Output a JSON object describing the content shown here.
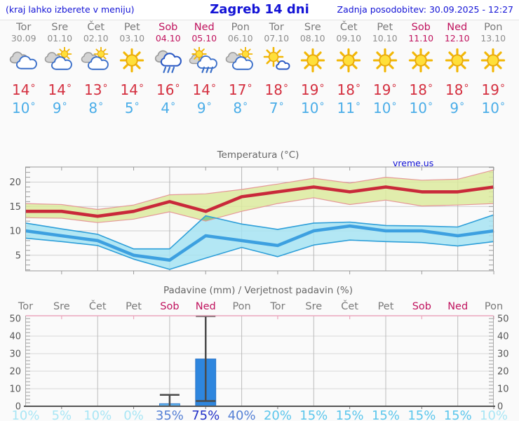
{
  "header": {
    "hint": "(kraj lahko izberete v meniju)",
    "title": "Zagreb 14 dni",
    "updated": "Zadnja posodobitev: 30.09.2025 - 12:27"
  },
  "watermark": "vreme.us",
  "forecast": {
    "days": [
      {
        "day": "Tor",
        "date": "30.09",
        "weekend": false,
        "icon": "cloudy",
        "tmax": 14,
        "tmin": 10
      },
      {
        "day": "Sre",
        "date": "01.10",
        "weekend": false,
        "icon": "sun-cloud",
        "tmax": 14,
        "tmin": 9
      },
      {
        "day": "Čet",
        "date": "02.10",
        "weekend": false,
        "icon": "sun-cloud",
        "tmax": 13,
        "tmin": 8
      },
      {
        "day": "Pet",
        "date": "03.10",
        "weekend": false,
        "icon": "sunny",
        "tmax": 14,
        "tmin": 5
      },
      {
        "day": "Sob",
        "date": "04.10",
        "weekend": true,
        "icon": "rain",
        "tmax": 16,
        "tmin": 4
      },
      {
        "day": "Ned",
        "date": "05.10",
        "weekend": true,
        "icon": "sun-rain",
        "tmax": 14,
        "tmin": 9
      },
      {
        "day": "Pon",
        "date": "06.10",
        "weekend": false,
        "icon": "sun-cloud",
        "tmax": 17,
        "tmin": 8
      },
      {
        "day": "Tor",
        "date": "07.10",
        "weekend": false,
        "icon": "sun-small-cloud",
        "tmax": 18,
        "tmin": 7
      },
      {
        "day": "Sre",
        "date": "08.10",
        "weekend": false,
        "icon": "sunny",
        "tmax": 19,
        "tmin": 10
      },
      {
        "day": "Čet",
        "date": "09.10",
        "weekend": false,
        "icon": "sunny",
        "tmax": 18,
        "tmin": 11
      },
      {
        "day": "Pet",
        "date": "10.10",
        "weekend": false,
        "icon": "sunny",
        "tmax": 19,
        "tmin": 10
      },
      {
        "day": "Sob",
        "date": "11.10",
        "weekend": true,
        "icon": "sunny",
        "tmax": 18,
        "tmin": 10
      },
      {
        "day": "Ned",
        "date": "12.10",
        "weekend": true,
        "icon": "sunny",
        "tmax": 18,
        "tmin": 9
      },
      {
        "day": "Pon",
        "date": "13.10",
        "weekend": false,
        "icon": "sunny",
        "tmax": 19,
        "tmin": 10
      }
    ]
  },
  "colors": {
    "header_text": "#1313d6",
    "weekday": "#7a7a7a",
    "date_gray": "#8d8d8d",
    "weekend": "#c0135e",
    "tmax": "#d42f3f",
    "tmin": "#4aade8",
    "chart_title": "#666666",
    "temp_max_line": "#c9293a",
    "temp_min_line": "#3da0e0",
    "temp_max_band": "#dcea9e",
    "temp_min_band": "#a6e3f2",
    "band_overlap": "#82cb82",
    "max_band_edge": "#e59898",
    "min_band_edge": "#2e9fd9",
    "bar_blue": "#2e86de",
    "bar_light": "#5fb0ec",
    "whisker": "#4a4a4a",
    "precip_top_axis": "#eba6bd",
    "prob_low": "#a9e6f5",
    "prob_mid": "#5bc6ec",
    "prob_high": "#5580d5",
    "prob_very_high": "#2230c8"
  },
  "chart_data": [
    {
      "type": "area",
      "title": "Temperatura (°C)",
      "x_days": 14,
      "ylim": [
        1.8,
        23.1
      ],
      "yticks": [
        5,
        10,
        15,
        20
      ],
      "series": [
        {
          "name": "temperatura max",
          "values": [
            14,
            14,
            13,
            14,
            16,
            14,
            17,
            18,
            19,
            18,
            19,
            18,
            18,
            19
          ]
        },
        {
          "name": "temperatura min",
          "values": [
            10,
            9,
            8,
            5,
            4,
            9,
            8,
            7,
            10,
            11,
            10,
            10,
            9,
            10
          ]
        }
      ],
      "bands": [
        {
          "name": "max razpon",
          "upper": [
            15.6,
            15.4,
            14.4,
            15.3,
            17.4,
            17.6,
            18.5,
            19.6,
            20.8,
            19.8,
            21.0,
            20.4,
            20.6,
            22.5
          ],
          "lower": [
            12.7,
            12.6,
            11.7,
            12.4,
            13.9,
            12.0,
            14.0,
            15.6,
            16.8,
            15.4,
            16.3,
            15.1,
            15.3,
            15.6
          ]
        },
        {
          "name": "min razpon",
          "upper": [
            11.6,
            10.4,
            9.3,
            6.3,
            6.3,
            13.1,
            11.4,
            10.3,
            11.6,
            11.8,
            11.1,
            11.0,
            10.8,
            13.3
          ],
          "lower": [
            8.5,
            7.8,
            7.0,
            4.2,
            2.1,
            4.4,
            6.6,
            4.7,
            7.1,
            8.1,
            7.8,
            7.6,
            6.9,
            7.8
          ]
        }
      ],
      "grid": true,
      "legend": "none"
    },
    {
      "type": "bar",
      "title": "Padavine (mm) / Verjetnost padavin (%)",
      "categories": [
        "Tor",
        "Sre",
        "Čet",
        "Pet",
        "Sob",
        "Ned",
        "Pon",
        "Tor",
        "Sre",
        "Čet",
        "Pet",
        "Sob",
        "Ned",
        "Pon"
      ],
      "weekend_flags": [
        false,
        false,
        false,
        false,
        true,
        true,
        false,
        false,
        false,
        false,
        false,
        true,
        true,
        false
      ],
      "values_mm": [
        0,
        0,
        0,
        0,
        1.5,
        27,
        0,
        0,
        0,
        0,
        0,
        0,
        0,
        0
      ],
      "whiskers": [
        {
          "index": 4,
          "low": 0,
          "high": 6.5
        },
        {
          "index": 5,
          "low": 3,
          "high": 52
        }
      ],
      "probabilities_pct": [
        10,
        5,
        10,
        0,
        35,
        75,
        40,
        20,
        15,
        15,
        15,
        15,
        15,
        10
      ],
      "ylim": [
        0,
        52
      ],
      "yticks": [
        0,
        10,
        20,
        30,
        40,
        50
      ],
      "grid": true,
      "legend": "none"
    }
  ]
}
